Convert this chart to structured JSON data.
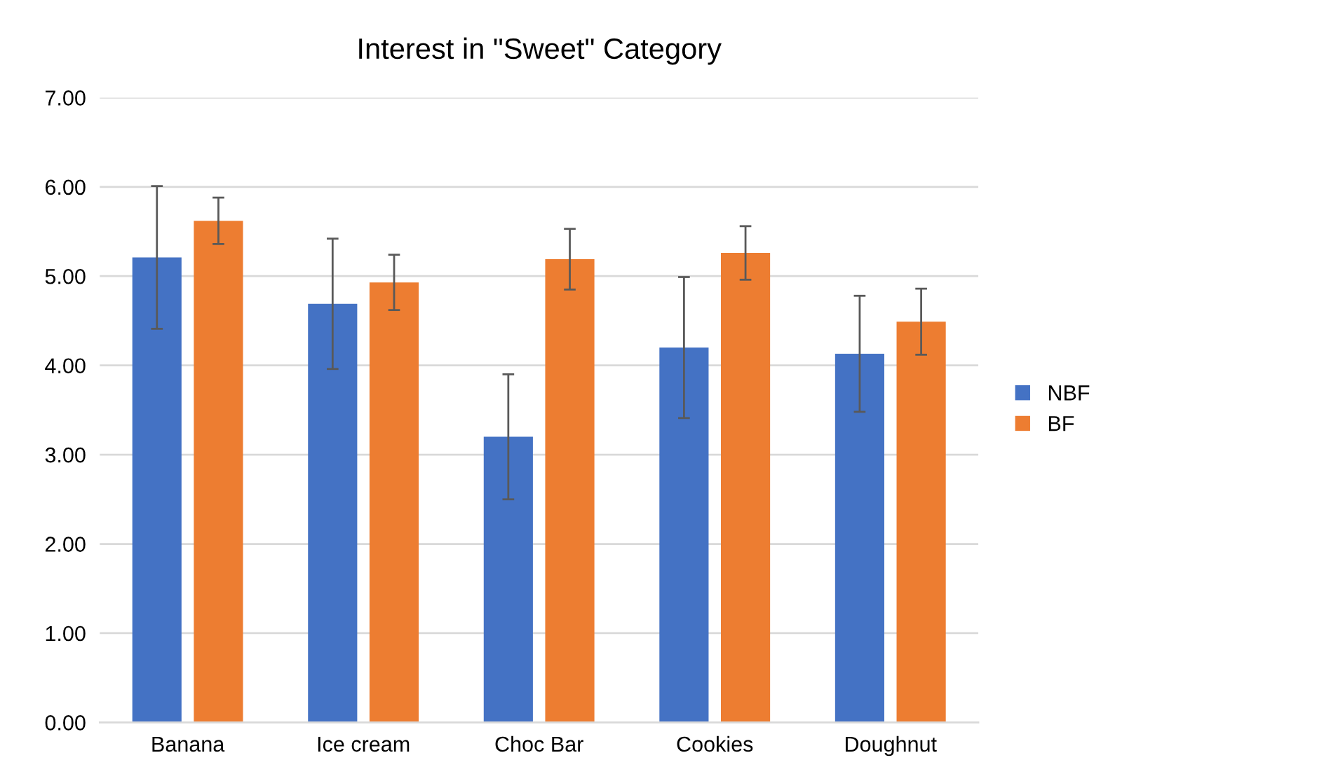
{
  "chart_data": {
    "type": "bar",
    "title": "Interest in \"Sweet\" Category",
    "categories": [
      "Banana",
      "Ice cream",
      "Choc Bar",
      "Cookies",
      "Doughnut"
    ],
    "series": [
      {
        "name": "NBF",
        "color": "#4472c4",
        "values": [
          5.21,
          4.69,
          3.2,
          4.2,
          4.13
        ],
        "errors": [
          0.8,
          0.73,
          0.7,
          0.79,
          0.65
        ]
      },
      {
        "name": "BF",
        "color": "#ed7d31",
        "values": [
          5.62,
          4.93,
          5.19,
          5.26,
          4.49
        ],
        "errors": [
          0.26,
          0.31,
          0.34,
          0.3,
          0.37
        ]
      }
    ],
    "ylim": [
      0,
      7
    ],
    "yticks": [
      {
        "value": 0,
        "label": "0.00"
      },
      {
        "value": 1,
        "label": "1.00"
      },
      {
        "value": 2,
        "label": "2.00"
      },
      {
        "value": 3,
        "label": "3.00"
      },
      {
        "value": 4,
        "label": "4.00"
      },
      {
        "value": 5,
        "label": "5.00"
      },
      {
        "value": 6,
        "label": "6.00"
      },
      {
        "value": 7,
        "label": "7.00"
      }
    ],
    "grid": "y",
    "legend": "right"
  }
}
